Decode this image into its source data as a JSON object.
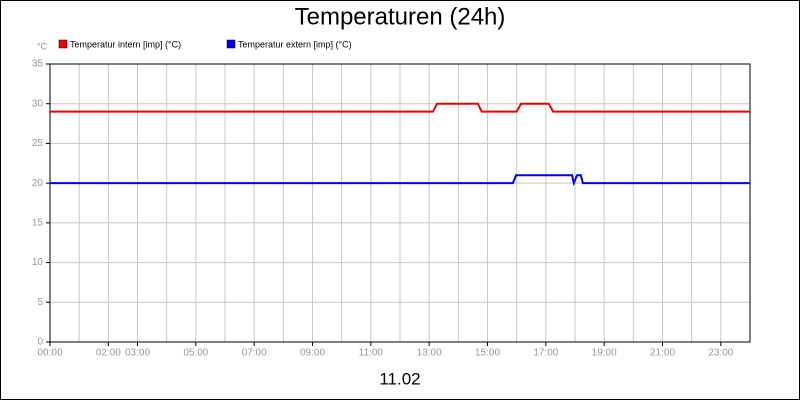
{
  "chart_data": {
    "type": "line",
    "title": "Temperaturen (24h)",
    "y_unit": "°C",
    "x_label": "11.02",
    "xlim": [
      0,
      24
    ],
    "ylim": [
      0,
      35
    ],
    "yticks": [
      0,
      5,
      10,
      15,
      20,
      25,
      30,
      35
    ],
    "xticks": [
      {
        "value": 0,
        "label": "00:00"
      },
      {
        "value": 2,
        "label": "02:00"
      },
      {
        "value": 3,
        "label": "03:00"
      },
      {
        "value": 5,
        "label": "05:00"
      },
      {
        "value": 7,
        "label": "07:00"
      },
      {
        "value": 9,
        "label": "09:00"
      },
      {
        "value": 11,
        "label": "11:00"
      },
      {
        "value": 13,
        "label": "13:00"
      },
      {
        "value": 15,
        "label": "15:00"
      },
      {
        "value": 17,
        "label": "17:00"
      },
      {
        "value": 19,
        "label": "19:00"
      },
      {
        "value": 21,
        "label": "21:00"
      },
      {
        "value": 23,
        "label": "23:00"
      }
    ],
    "x_minor_grid": [
      1,
      4,
      6,
      8,
      10,
      12,
      14,
      16,
      18,
      20,
      22,
      24
    ],
    "grid": true,
    "series": [
      {
        "name": "Temperatur intern [imp] (°C)",
        "color": "#ee0000",
        "x": [
          0,
          13.13,
          13.27,
          14.67,
          14.8,
          16.0,
          16.15,
          17.1,
          17.25,
          24
        ],
        "values": [
          29,
          29,
          30,
          30,
          29,
          29,
          30,
          30,
          29,
          29
        ]
      },
      {
        "name": "Temperatur extern [imp] (°C)",
        "color": "#0000ee",
        "x": [
          0,
          15.87,
          15.98,
          17.9,
          17.96,
          18.07,
          18.2,
          18.27,
          18.37,
          24
        ],
        "values": [
          20,
          20,
          21,
          21,
          20,
          21,
          21,
          20,
          20,
          20
        ]
      }
    ]
  }
}
